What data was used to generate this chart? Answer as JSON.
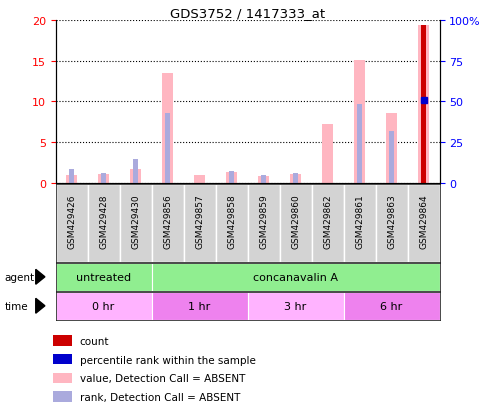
{
  "title": "GDS3752 / 1417333_at",
  "samples": [
    "GSM429426",
    "GSM429428",
    "GSM429430",
    "GSM429856",
    "GSM429857",
    "GSM429858",
    "GSM429859",
    "GSM429860",
    "GSM429862",
    "GSM429861",
    "GSM429863",
    "GSM429864"
  ],
  "values_absent": [
    1.0,
    1.1,
    1.7,
    13.5,
    1.0,
    1.4,
    0.9,
    1.1,
    7.3,
    15.1,
    8.6,
    19.3
  ],
  "rank_absent": [
    1.8,
    1.3,
    3.0,
    8.6,
    null,
    1.5,
    1.0,
    1.2,
    null,
    9.7,
    6.4,
    null
  ],
  "count": [
    null,
    null,
    null,
    null,
    null,
    null,
    null,
    null,
    null,
    null,
    null,
    19.3
  ],
  "percentile_rank": [
    null,
    null,
    null,
    null,
    null,
    null,
    null,
    null,
    null,
    null,
    null,
    10.2
  ],
  "ylim_left": [
    0,
    20
  ],
  "ylim_right": [
    0,
    100
  ],
  "yticks_left": [
    0,
    5,
    10,
    15,
    20
  ],
  "yticks_right": [
    0,
    25,
    50,
    75,
    100
  ],
  "yticklabels_right": [
    "0",
    "25",
    "50",
    "75",
    "100%"
  ],
  "agent_groups": [
    {
      "label": "untreated",
      "start": 0,
      "end": 3,
      "color": "#90EE90"
    },
    {
      "label": "concanavalin A",
      "start": 3,
      "end": 12,
      "color": "#90EE90"
    }
  ],
  "time_groups": [
    {
      "label": "0 hr",
      "start": 0,
      "end": 3,
      "color": "#FFB3FF"
    },
    {
      "label": "1 hr",
      "start": 3,
      "end": 6,
      "color": "#EE82EE"
    },
    {
      "label": "3 hr",
      "start": 6,
      "end": 9,
      "color": "#FFB3FF"
    },
    {
      "label": "6 hr",
      "start": 9,
      "end": 12,
      "color": "#EE82EE"
    }
  ],
  "color_value_absent": "#FFB6C1",
  "color_rank_absent": "#AAAADD",
  "color_count": "#CC0000",
  "color_percentile": "#0000CC",
  "legend_items": [
    {
      "color": "#CC0000",
      "label": "count"
    },
    {
      "color": "#0000CC",
      "label": "percentile rank within the sample"
    },
    {
      "color": "#FFB6C1",
      "label": "value, Detection Call = ABSENT"
    },
    {
      "color": "#AAAADD",
      "label": "rank, Detection Call = ABSENT"
    }
  ]
}
